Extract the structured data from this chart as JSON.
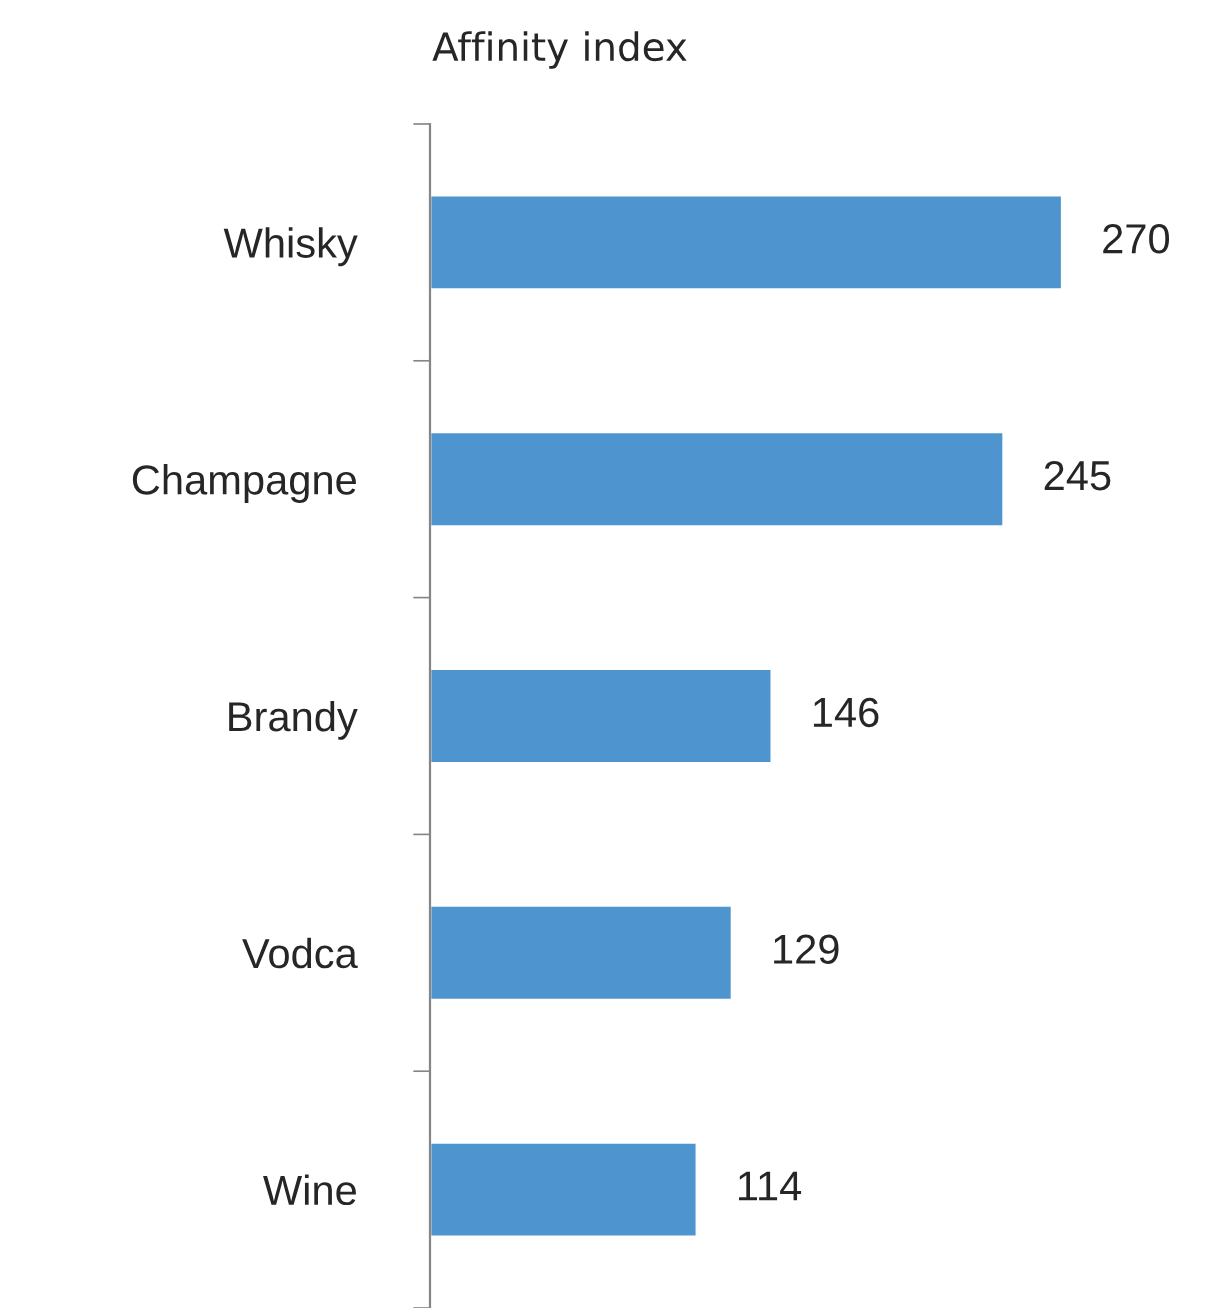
{
  "chart_data": {
    "type": "bar",
    "orientation": "horizontal",
    "title": "Affinity index",
    "categories": [
      "Whisky",
      "Champagne",
      "Brandy",
      "Vodca",
      "Wine"
    ],
    "values": [
      270,
      245,
      146,
      129,
      114
    ],
    "color": "#4e94ce",
    "data_labels": true,
    "tick_labels": "y",
    "grid": false,
    "legend": false
  }
}
